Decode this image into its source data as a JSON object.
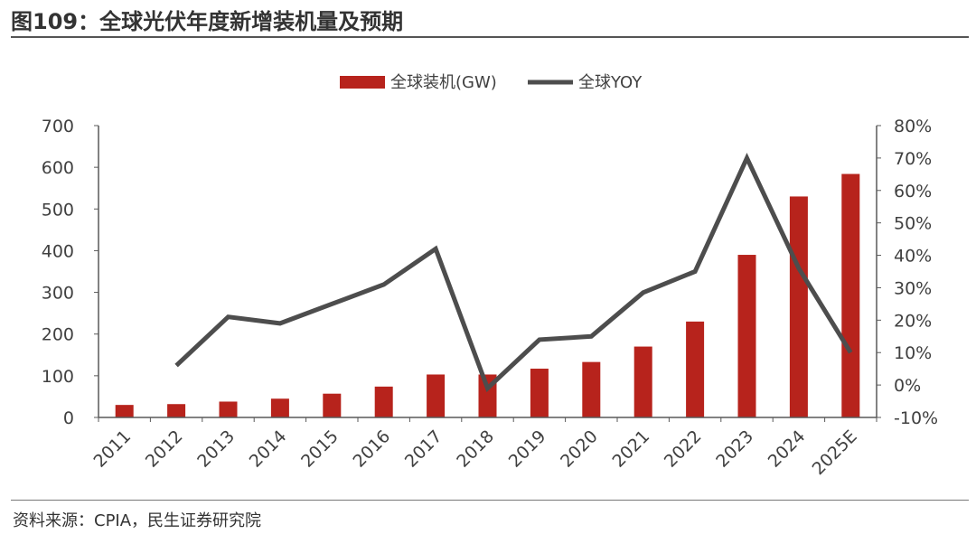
{
  "header": {
    "title": "图109：全球光伏年度新增装机量及预期"
  },
  "footer": {
    "source": "资料来源：CPIA，民生证券研究院"
  },
  "colors": {
    "bar": "#b7231c",
    "line": "#4d4d4d",
    "axis": "#595959"
  },
  "chart_data": {
    "type": "bar",
    "categories": [
      "2011",
      "2012",
      "2013",
      "2014",
      "2015",
      "2016",
      "2017",
      "2018",
      "2019",
      "2020",
      "2021",
      "2022",
      "2023",
      "2024",
      "2025E"
    ],
    "series": [
      {
        "name": "全球装机(GW)",
        "type": "bar",
        "axis": "left",
        "values": [
          30,
          32,
          38,
          45,
          57,
          74,
          103,
          103,
          117,
          133,
          170,
          230,
          390,
          530,
          584
        ]
      },
      {
        "name": "全球YOY",
        "type": "line",
        "axis": "right",
        "values": [
          null,
          0.06,
          0.21,
          0.19,
          0.25,
          0.31,
          0.42,
          -0.01,
          0.14,
          0.15,
          0.285,
          0.35,
          0.7,
          0.36,
          0.1
        ]
      }
    ],
    "ylim": [
      0,
      700
    ],
    "y_ticks": [
      "0",
      "100",
      "200",
      "300",
      "400",
      "500",
      "600",
      "700"
    ],
    "y2lim": [
      -0.1,
      0.8
    ],
    "y2_ticks": [
      "-10%",
      "0%",
      "10%",
      "20%",
      "30%",
      "40%",
      "50%",
      "60%",
      "70%",
      "80%"
    ],
    "legend_position": "top-center",
    "grid": false
  }
}
